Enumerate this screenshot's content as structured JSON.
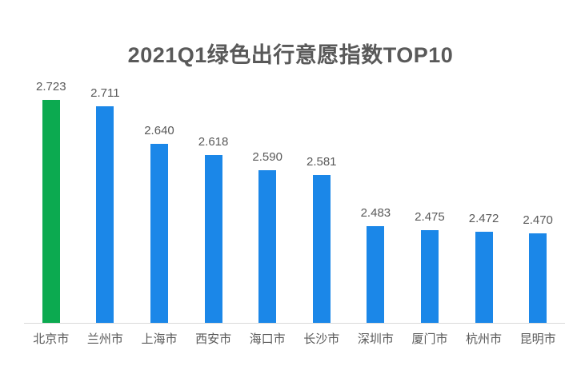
{
  "chart_data": {
    "type": "bar",
    "title": "2021Q1绿色出行意愿指数TOP10",
    "categories": [
      "北京市",
      "兰州市",
      "上海市",
      "西安市",
      "海口市",
      "长沙市",
      "深圳市",
      "厦门市",
      "杭州市",
      "昆明市"
    ],
    "values": [
      2.723,
      2.711,
      2.64,
      2.618,
      2.59,
      2.581,
      2.483,
      2.475,
      2.472,
      2.47
    ],
    "value_labels": [
      "2.723",
      "2.711",
      "2.640",
      "2.618",
      "2.590",
      "2.581",
      "2.483",
      "2.475",
      "2.472",
      "2.470"
    ],
    "xlabel": "",
    "ylabel": "",
    "ylim": [
      2.3,
      2.75
    ],
    "grid": false,
    "legend": false,
    "bar_color": "#1b87e8",
    "highlight_color": "#0caa50",
    "highlight_index": 0,
    "baseline_color": "#d9d9d9",
    "label_color": "#595959",
    "title_color": "#595959"
  }
}
